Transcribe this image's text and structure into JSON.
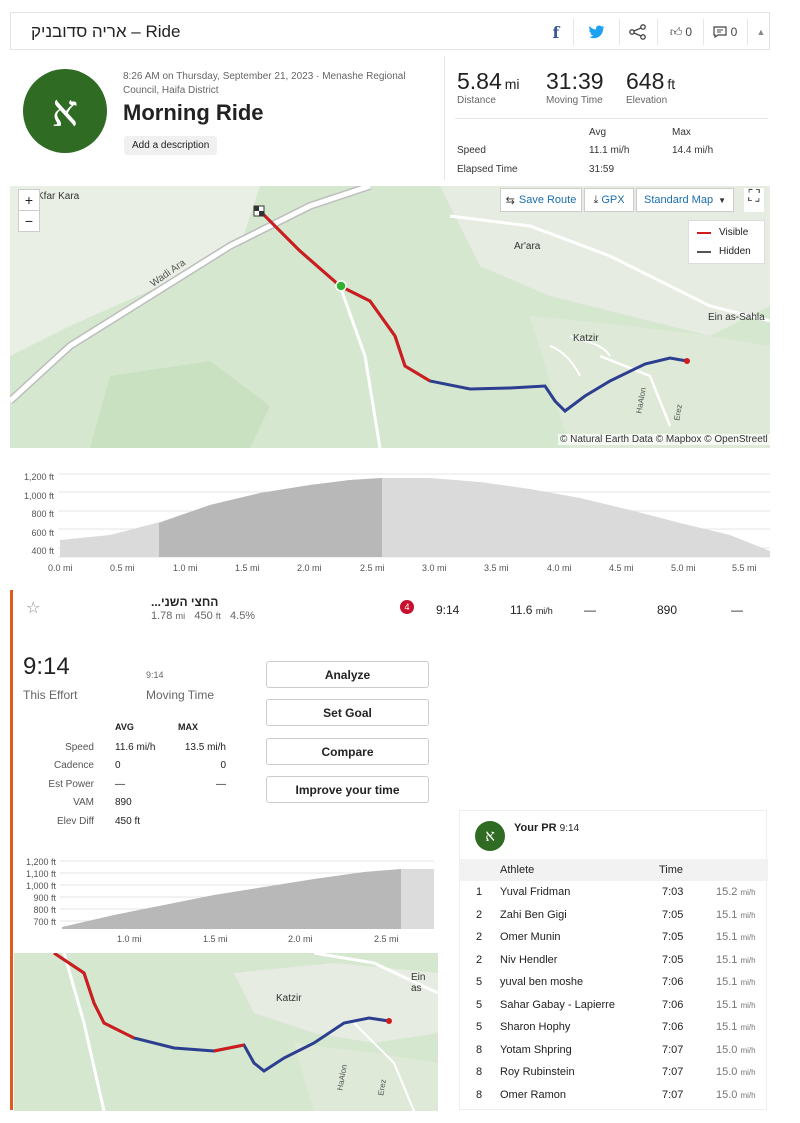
{
  "header": {
    "title": "אריה סדובניק – Ride",
    "kudos_count": "0",
    "comments_count": "0",
    "icons": [
      "facebook-icon",
      "twitter-icon",
      "share-icon",
      "thumbs-up-icon",
      "comment-icon",
      "collapse-icon"
    ]
  },
  "athlete": {
    "avatar_letter": "א"
  },
  "activity": {
    "meta": "8:26 AM on Thursday, September 21, 2023 · Menashe Regional Council, Haifa District",
    "name": "Morning Ride",
    "add_description": "Add a description"
  },
  "stats": {
    "distance": "5.84",
    "distance_unit": "mi",
    "distance_label": "Distance",
    "moving_time": "31:39",
    "moving_time_label": "Moving Time",
    "elevation": "648",
    "elevation_unit": "ft",
    "elevation_label": "Elevation"
  },
  "details": {
    "avg_label": "Avg",
    "max_label": "Max",
    "speed_label": "Speed",
    "speed_avg": "11.1 mi/h",
    "speed_max": "14.4 mi/h",
    "elapsed_label": "Elapsed Time",
    "elapsed": "31:59"
  },
  "map": {
    "zoom_in": "+",
    "zoom_out": "−",
    "save_route": "Save Route",
    "gpx": "GPX",
    "map_type": "Standard Map",
    "legend_visible": "Visible",
    "legend_hidden": "Hidden",
    "places": [
      "Kfar Kara",
      "Wadi Ara",
      "Ar'ara",
      "Ein as-Sahla",
      "Katzir",
      "HaAlon",
      "Erez"
    ],
    "credit": "© Natural Earth Data © Mapbox © OpenStreetl"
  },
  "elevation_chart": {
    "y_ticks": [
      "1,200 ft",
      "1,000 ft",
      "800 ft",
      "600 ft",
      "400 ft"
    ],
    "x_ticks": [
      "0.0 mi",
      "0.5 mi",
      "1.0 mi",
      "1.5 mi",
      "2.0 mi",
      "2.5 mi",
      "3.0 mi",
      "3.5 mi",
      "4.0 mi",
      "4.5 mi",
      "5.0 mi",
      "5.5 mi"
    ]
  },
  "segment": {
    "name": "...החצי השני",
    "distance": "1.78",
    "distance_unit": "mi",
    "elev": "450",
    "elev_unit": "ft",
    "grade": "4.5%",
    "rank_badge": "4",
    "time": "9:14",
    "speed": "11.6",
    "speed_unit": "mi/h",
    "col_dash1": "—",
    "vam": "890",
    "col_dash2": "—"
  },
  "effort": {
    "time": "9:14",
    "time_label": "This Effort",
    "moving_time": "9:14",
    "moving_time_label": "Moving Time",
    "avg_label": "AVG",
    "max_label": "MAX",
    "rows": [
      {
        "label": "Speed",
        "avg": "11.6 mi/h",
        "max": "13.5 mi/h"
      },
      {
        "label": "Cadence",
        "avg": "0",
        "max": "0"
      },
      {
        "label": "Est Power",
        "avg": "—",
        "max": "—"
      },
      {
        "label": "VAM",
        "avg": "890",
        "max": ""
      },
      {
        "label": "Elev Diff",
        "avg": "450 ft",
        "max": ""
      }
    ],
    "buttons": [
      "Analyze",
      "Set Goal",
      "Compare",
      "Improve your time"
    ]
  },
  "segment_chart": {
    "y_ticks": [
      "1,200 ft",
      "1,100 ft",
      "1,000 ft",
      "900 ft",
      "800 ft",
      "700 ft"
    ],
    "x_ticks": [
      "1.0 mi",
      "1.5 mi",
      "2.0 mi",
      "2.5 mi"
    ]
  },
  "segment_map": {
    "places": [
      "Katzir",
      "Ein as",
      "HaAlon",
      "Erez"
    ]
  },
  "leaderboard": {
    "pr_label": "Your PR",
    "pr_time": "9:14",
    "col_athlete": "Athlete",
    "col_time": "Time",
    "speed_unit": "mi/h",
    "rows": [
      {
        "rank": "1",
        "name": "Yuval Fridman",
        "time": "7:03",
        "speed": "15.2"
      },
      {
        "rank": "2",
        "name": "Zahi Ben Gigi",
        "time": "7:05",
        "speed": "15.1"
      },
      {
        "rank": "2",
        "name": "Omer Munin",
        "time": "7:05",
        "speed": "15.1"
      },
      {
        "rank": "2",
        "name": "Niv Hendler",
        "time": "7:05",
        "speed": "15.1"
      },
      {
        "rank": "5",
        "name": "yuval ben moshe",
        "time": "7:06",
        "speed": "15.1"
      },
      {
        "rank": "5",
        "name": "Sahar Gabay - Lapierre",
        "time": "7:06",
        "speed": "15.1"
      },
      {
        "rank": "5",
        "name": "Sharon Hophy",
        "time": "7:06",
        "speed": "15.1"
      },
      {
        "rank": "8",
        "name": "Yotam Shpring",
        "time": "7:07",
        "speed": "15.0"
      },
      {
        "rank": "8",
        "name": "Roy Rubinstein",
        "time": "7:07",
        "speed": "15.0"
      },
      {
        "rank": "8",
        "name": "Omer Ramon",
        "time": "7:07",
        "speed": "15.0"
      }
    ]
  }
}
